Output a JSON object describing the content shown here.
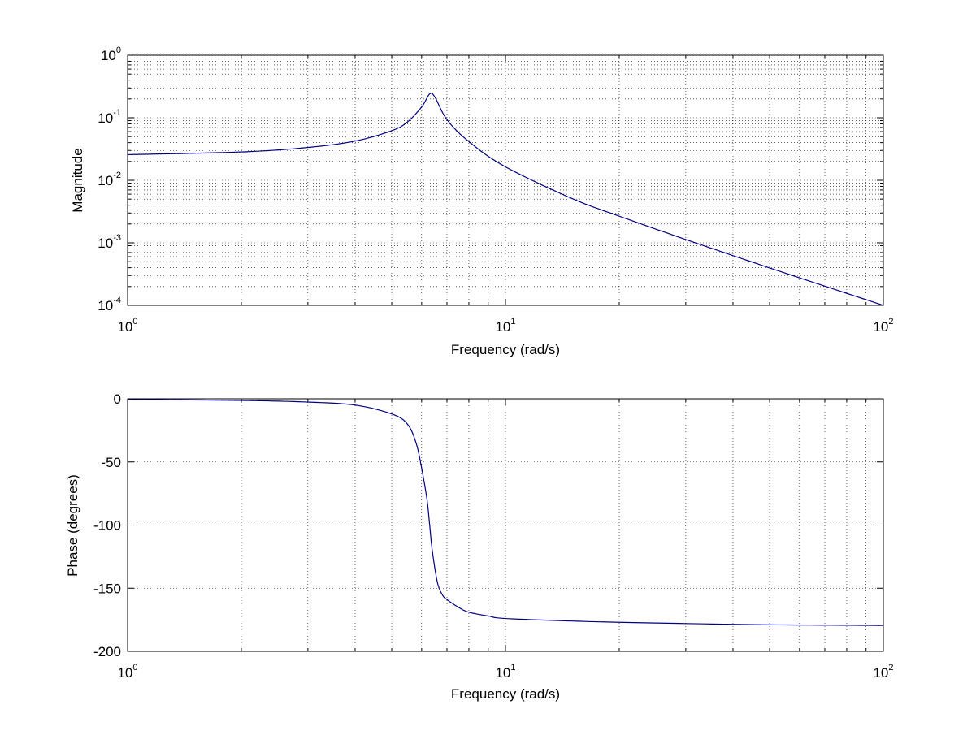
{
  "chart_data": [
    {
      "type": "line",
      "xlabel": "Frequency (rad/s)",
      "ylabel": "Magnitude",
      "xscale": "log",
      "yscale": "log",
      "xlim": [
        1,
        100
      ],
      "ylim": [
        0.0001,
        1
      ],
      "grid": true,
      "legend": "none",
      "line_color": "#000080",
      "x_ticks": [
        {
          "base": "10",
          "exp": "0",
          "value": 1
        },
        {
          "base": "10",
          "exp": "1",
          "value": 10
        },
        {
          "base": "10",
          "exp": "2",
          "value": 100
        }
      ],
      "y_ticks": [
        {
          "base": "10",
          "exp": "-4",
          "value": 0.0001
        },
        {
          "base": "10",
          "exp": "-3",
          "value": 0.001
        },
        {
          "base": "10",
          "exp": "-2",
          "value": 0.01
        },
        {
          "base": "10",
          "exp": "-1",
          "value": 0.1
        },
        {
          "base": "10",
          "exp": "0",
          "value": 1
        }
      ],
      "series": [
        {
          "x": [
            1,
            2,
            3,
            4,
            5,
            5.5,
            6,
            6.3,
            6.5,
            7,
            8,
            10,
            15,
            20,
            30,
            50,
            70,
            100
          ],
          "y": [
            0.0257,
            0.0284,
            0.0335,
            0.0424,
            0.0621,
            0.0855,
            0.149,
            0.24,
            0.215,
            0.0935,
            0.0416,
            0.0164,
            0.00511,
            0.00267,
            0.00113,
            0.000397,
            0.000203,
            0.0001
          ]
        }
      ]
    },
    {
      "type": "line",
      "xlabel": "Frequency (rad/s)",
      "ylabel": "Phase (degrees)",
      "xscale": "log",
      "yscale": "linear",
      "xlim": [
        1,
        100
      ],
      "ylim": [
        -200,
        0
      ],
      "grid": true,
      "legend": "none",
      "line_color": "#000080",
      "x_ticks": [
        {
          "base": "10",
          "exp": "0",
          "value": 1
        },
        {
          "base": "10",
          "exp": "1",
          "value": 10
        },
        {
          "base": "10",
          "exp": "2",
          "value": 100
        }
      ],
      "y_ticks": [
        "0",
        "-50",
        "-100",
        "-150",
        "-200"
      ],
      "series": [
        {
          "x": [
            1,
            2,
            3,
            4,
            5,
            5.5,
            5.8,
            6,
            6.2,
            6.3,
            6.4,
            6.6,
            6.8,
            7,
            7.5,
            8,
            9,
            10,
            15,
            20,
            30,
            50,
            100
          ],
          "y": [
            -0.5,
            -1.3,
            -2.6,
            -5,
            -12,
            -20,
            -35,
            -55,
            -80,
            -100,
            -120,
            -145,
            -155,
            -159,
            -165,
            -169,
            -172,
            -174,
            -176,
            -177,
            -178,
            -179,
            -179.5
          ]
        }
      ]
    }
  ]
}
